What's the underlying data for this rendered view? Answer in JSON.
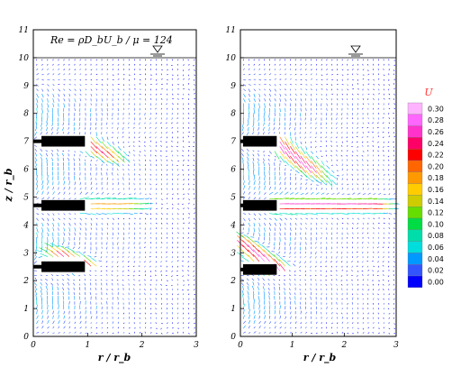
{
  "chart_data": [
    {
      "type": "vector-field",
      "annotation": "Re = ρD_bU_b / μ = 124",
      "xlabel": "r / r_b",
      "ylabel": "z / r_b",
      "xlim": [
        0,
        3
      ],
      "ylim": [
        0,
        11
      ],
      "x_ticks": [
        "0",
        "1",
        "2",
        "3"
      ],
      "y_ticks": [
        "0",
        "1",
        "2",
        "3",
        "4",
        "5",
        "6",
        "7",
        "8",
        "9",
        "10",
        "11"
      ],
      "free_surface_z": 10,
      "blades": [
        {
          "z": 7.0,
          "r_start": 0.15,
          "r_end": 0.95
        },
        {
          "z": 4.7,
          "r_start": 0.15,
          "r_end": 0.95
        },
        {
          "z": 2.5,
          "r_start": 0.15,
          "r_end": 0.95
        }
      ],
      "jets": [
        {
          "z0": 7.0,
          "r0": 0.95,
          "angle_deg": -45,
          "length": 0.55,
          "peak_U": 0.24
        },
        {
          "z0": 4.7,
          "r0": 0.95,
          "angle_deg": 0,
          "length": 0.7,
          "peak_U": 0.18
        },
        {
          "z0": 2.5,
          "r0": 0.95,
          "angle_deg": 135,
          "length": 0.6,
          "peak_U": 0.24
        }
      ]
    },
    {
      "type": "vector-field",
      "xlabel": "r / r_b",
      "xlim": [
        0,
        3
      ],
      "ylim": [
        0,
        11
      ],
      "x_ticks": [
        "0",
        "1",
        "2",
        "3"
      ],
      "y_ticks": [
        "0",
        "1",
        "2",
        "3",
        "4",
        "5",
        "6",
        "7",
        "8",
        "9",
        "10",
        "11"
      ],
      "free_surface_z": 10,
      "blades": [
        {
          "z": 7.0,
          "r_start": 0.05,
          "r_end": 0.7
        },
        {
          "z": 4.7,
          "r_start": 0.05,
          "r_end": 0.7
        },
        {
          "z": 2.4,
          "r_start": 0.05,
          "r_end": 0.7
        }
      ],
      "jets": [
        {
          "z0": 7.0,
          "r0": 0.7,
          "angle_deg": -55,
          "length": 1.1,
          "peak_U": 0.28
        },
        {
          "z0": 4.7,
          "r0": 0.7,
          "angle_deg": 0,
          "length": 1.9,
          "peak_U": 0.26
        },
        {
          "z0": 2.4,
          "r0": 0.7,
          "angle_deg": 125,
          "length": 1.1,
          "peak_U": 0.28
        }
      ]
    }
  ],
  "colorbar": {
    "title": "U",
    "ticks": [
      "0.30",
      "0.28",
      "0.26",
      "0.24",
      "0.22",
      "0.20",
      "0.18",
      "0.16",
      "0.14",
      "0.12",
      "0.10",
      "0.08",
      "0.06",
      "0.04",
      "0.02",
      "0.00"
    ],
    "colors": [
      "#ffb3ff",
      "#ff66ff",
      "#ff33cc",
      "#ff0066",
      "#ff0000",
      "#ff6600",
      "#ff9900",
      "#ffcc00",
      "#cccc00",
      "#66dd00",
      "#00dd44",
      "#00ddaa",
      "#00dddd",
      "#0099ff",
      "#3355ff",
      "#0000ff"
    ]
  }
}
